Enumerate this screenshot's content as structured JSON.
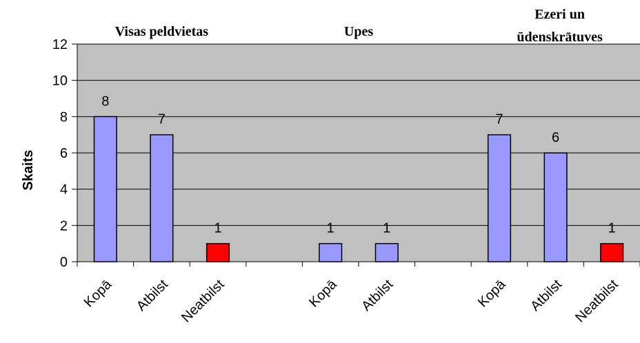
{
  "chart_data": {
    "type": "bar",
    "ylabel": "Skaits",
    "ylim": [
      0,
      12
    ],
    "yticks": [
      0,
      2,
      4,
      6,
      8,
      10,
      12
    ],
    "grid": true,
    "groups": [
      {
        "title": "Visas peldvietas",
        "bars": [
          {
            "label": "Kopā",
            "value": 8
          },
          {
            "label": "Atbilst",
            "value": 7
          },
          {
            "label": "Neatbilst",
            "value": 1
          }
        ]
      },
      {
        "title": "Upes",
        "bars": [
          {
            "label": "Kopā",
            "value": 1
          },
          {
            "label": "Atbilst",
            "value": 1
          }
        ]
      },
      {
        "title": "Ezeri un ūdenskrātuves",
        "bars": [
          {
            "label": "Kopā",
            "value": 7
          },
          {
            "label": "Atbilst",
            "value": 6
          },
          {
            "label": "Neatbilst",
            "value": 1
          }
        ]
      }
    ],
    "colors": {
      "plot_background": "#c0c0c0",
      "bar_default": "#9999ff",
      "bar_neatbilst": "#ff0000",
      "bar_border": "#000000",
      "grid": "#000000"
    }
  }
}
